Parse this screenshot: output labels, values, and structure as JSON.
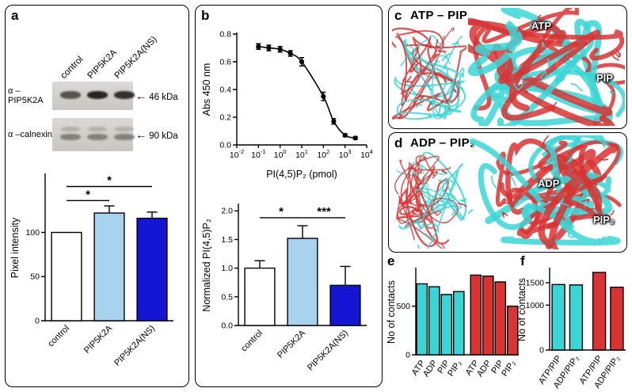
{
  "figure": {
    "panels": {
      "a": {
        "label": "a"
      },
      "b": {
        "label": "b"
      },
      "c": {
        "label": "c",
        "title": "ATP – PIP",
        "ligand1": "ATP",
        "ligand2": "PIP"
      },
      "d": {
        "label": "d",
        "title": "ADP – PIP₂",
        "ligand1": "ADP",
        "ligand2": "PIP₂"
      },
      "e": {
        "label": "e"
      },
      "f": {
        "label": "f"
      }
    },
    "blot": {
      "lanes": [
        "control",
        "PIP5K2A",
        "PIP5K2A(NS)"
      ],
      "rows": [
        {
          "antibody": "α –PIP5K2A",
          "marker": "46 kDa"
        },
        {
          "antibody": "α –calnexin",
          "marker": "90 kDa"
        }
      ],
      "arrow": "←"
    },
    "colors": {
      "light_blue": "#a9d2ee",
      "dark_blue": "#1515d4",
      "cyan": "#3ad6d6",
      "red": "#d83434"
    }
  },
  "chart_data": [
    {
      "id": "a_pixel_intensity",
      "type": "bar",
      "ylabel": "Pixel intensity",
      "categories": [
        "control",
        "PIP5K2A",
        "PIP5K2A(NS)"
      ],
      "values": [
        100,
        122,
        116
      ],
      "errors": [
        0,
        8,
        7
      ],
      "bar_colors": [
        "#ffffff",
        "#a9d2ee",
        "#1515d4"
      ],
      "ylim": [
        0,
        165
      ],
      "yticks": [
        0,
        50,
        100
      ],
      "ytick_labels": [
        "0",
        "50",
        "100"
      ],
      "significance": [
        {
          "a": 0,
          "b": 1,
          "y": 136,
          "label": "*"
        },
        {
          "a": 0,
          "b": 2,
          "y": 152,
          "label": "*"
        }
      ]
    },
    {
      "id": "b_elisa_curve",
      "type": "scatter",
      "ylabel": "Abs 450 nm",
      "xlabel": "PI(4,5)P₂ (pmol)",
      "xscale": "log",
      "xlim_log": [
        -2,
        4
      ],
      "xtick_exponents": [
        -2,
        -1,
        0,
        1,
        2,
        3,
        4
      ],
      "x": [
        0.1,
        0.3,
        1,
        3,
        10,
        100,
        300,
        1000,
        3000
      ],
      "y": [
        0.71,
        0.7,
        0.69,
        0.66,
        0.6,
        0.35,
        0.17,
        0.07,
        0.05
      ],
      "yerr": [
        0.02,
        0.02,
        0.02,
        0.02,
        0.03,
        0.03,
        0.02,
        0.01,
        0.01
      ],
      "ylim": [
        0,
        0.8
      ],
      "yticks": [
        0,
        0.2,
        0.4,
        0.6,
        0.8
      ],
      "ytick_labels": [
        "0.0",
        "0.2",
        "0.4",
        "0.6",
        "0.8"
      ]
    },
    {
      "id": "b_normalized",
      "type": "bar",
      "ylabel": "Normalized PI(4,5)P₂",
      "categories": [
        "control",
        "PIP5K2A",
        "PIP5K2A(NS)"
      ],
      "values": [
        1.0,
        1.52,
        0.7
      ],
      "errors": [
        0.13,
        0.22,
        0.33
      ],
      "bar_colors": [
        "#ffffff",
        "#a9d2ee",
        "#1515d4"
      ],
      "ylim": [
        0,
        2.1
      ],
      "yticks": [
        0,
        0.5,
        1,
        1.5,
        2
      ],
      "ytick_labels": [
        "0.0",
        "0.5",
        "1.0",
        "1.5",
        "2.0"
      ],
      "significance": [
        {
          "a": 0,
          "b": 1,
          "y": 1.88,
          "label": "*"
        },
        {
          "a": 1,
          "b": 2,
          "y": 1.88,
          "label": "***"
        }
      ]
    },
    {
      "id": "e_contacts",
      "type": "bar",
      "ylabel": "No of contacts",
      "categories": [
        "ATP",
        "ADP",
        "PIP",
        "PIP₂",
        "ATP",
        "ADP",
        "PIP",
        "PIP₂"
      ],
      "values": [
        730,
        700,
        620,
        650,
        820,
        810,
        750,
        500
      ],
      "bar_colors": [
        "#3ad6d6",
        "#3ad6d6",
        "#3ad6d6",
        "#3ad6d6",
        "#d83434",
        "#d83434",
        "#d83434",
        "#d83434"
      ],
      "ylim": [
        0,
        880
      ],
      "yticks": [
        0,
        500
      ],
      "ytick_labels": [
        "0",
        "500"
      ],
      "gap_after": [
        3
      ]
    },
    {
      "id": "f_contacts",
      "type": "bar",
      "ylabel": "No of contacts",
      "categories": [
        "ATP/PIP",
        "ADP/PIP₂",
        "ATP/PIP",
        "ADP/PIP₂"
      ],
      "values": [
        1460,
        1450,
        1730,
        1400
      ],
      "bar_colors": [
        "#3ad6d6",
        "#3ad6d6",
        "#d83434",
        "#d83434"
      ],
      "ylim": [
        0,
        1800
      ],
      "yticks": [
        0,
        1000,
        1500
      ],
      "ytick_labels": [
        "0",
        "1000",
        "1500"
      ],
      "gap_after": [
        1
      ]
    }
  ]
}
